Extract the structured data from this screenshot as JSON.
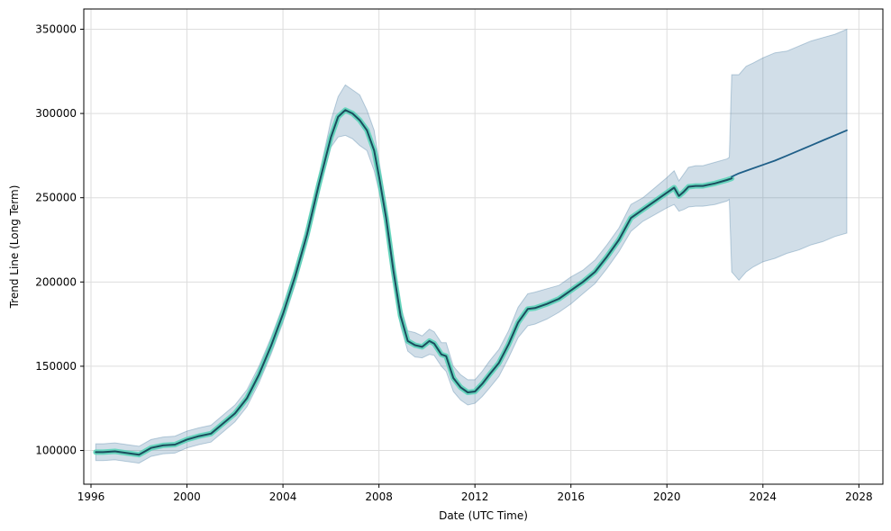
{
  "chart_data": {
    "type": "line",
    "title": "",
    "xlabel": "Date (UTC Time)",
    "ylabel": "Trend Line (Long Term)",
    "xlim": [
      1995.7,
      2029.0
    ],
    "ylim": [
      80000,
      362000
    ],
    "x_ticks": [
      1996,
      2000,
      2004,
      2008,
      2012,
      2016,
      2020,
      2024,
      2028
    ],
    "y_ticks": [
      100000,
      150000,
      200000,
      250000,
      300000,
      350000
    ],
    "grid": true,
    "legend": "none",
    "colors": {
      "band": "#2f6a94",
      "observed_highlight": "#56d4b6",
      "observed_line": "#1b4d5e",
      "forecast_line": "#1f5f88",
      "grid": "#dddddd"
    },
    "series": [
      {
        "role": "observed_highlight",
        "x": [
          1996.2,
          1996.5,
          1997.0,
          1997.5,
          1998.0,
          1998.5,
          1999.0,
          1999.5,
          2000.0,
          2000.5,
          2001.0,
          2001.5,
          2002.0,
          2002.5,
          2003.0,
          2003.5,
          2004.0,
          2004.5,
          2005.0,
          2005.5,
          2006.0,
          2006.3,
          2006.6,
          2006.9,
          2007.2,
          2007.5,
          2007.8,
          2008.0,
          2008.3,
          2008.6,
          2008.9,
          2009.2,
          2009.5,
          2009.8,
          2010.1,
          2010.3,
          2010.6,
          2010.8,
          2011.1,
          2011.4,
          2011.7,
          2012.0,
          2012.3,
          2012.6,
          2013.0,
          2013.4,
          2013.8,
          2014.2,
          2014.5,
          2015.0,
          2015.5,
          2016.0,
          2016.5,
          2017.0,
          2017.5,
          2018.0,
          2018.5,
          2019.0,
          2019.5,
          2020.0,
          2020.3,
          2020.5,
          2020.7,
          2020.9,
          2021.2,
          2021.5,
          2022.0,
          2022.5,
          2022.7
        ],
        "y": [
          99000,
          99000,
          99500,
          98500,
          97500,
          101500,
          103000,
          103500,
          106500,
          108500,
          110000,
          116000,
          122000,
          131000,
          145000,
          162000,
          181000,
          203000,
          228000,
          258000,
          286000,
          298000,
          302000,
          300000,
          296000,
          290000,
          278000,
          263000,
          238000,
          207000,
          180000,
          165000,
          162500,
          161500,
          165000,
          163500,
          157000,
          156000,
          143000,
          137500,
          134500,
          135000,
          139500,
          145000,
          152000,
          163000,
          176000,
          184000,
          184500,
          187000,
          190000,
          195000,
          200000,
          206000,
          215000,
          225000,
          238000,
          243000,
          248000,
          253000,
          256000,
          251000,
          253500,
          256500,
          257000,
          257000,
          258500,
          260500,
          261500
        ]
      },
      {
        "role": "observed",
        "x": [
          1996.2,
          1996.5,
          1997.0,
          1997.5,
          1998.0,
          1998.5,
          1999.0,
          1999.5,
          2000.0,
          2000.5,
          2001.0,
          2001.5,
          2002.0,
          2002.5,
          2003.0,
          2003.5,
          2004.0,
          2004.5,
          2005.0,
          2005.5,
          2006.0,
          2006.3,
          2006.6,
          2006.9,
          2007.2,
          2007.5,
          2007.8,
          2008.0,
          2008.3,
          2008.6,
          2008.9,
          2009.2,
          2009.5,
          2009.8,
          2010.1,
          2010.3,
          2010.6,
          2010.8,
          2011.1,
          2011.4,
          2011.7,
          2012.0,
          2012.3,
          2012.6,
          2013.0,
          2013.4,
          2013.8,
          2014.2,
          2014.5,
          2015.0,
          2015.5,
          2016.0,
          2016.5,
          2017.0,
          2017.5,
          2018.0,
          2018.5,
          2019.0,
          2019.5,
          2020.0,
          2020.3,
          2020.5,
          2020.7,
          2020.9,
          2021.2,
          2021.5,
          2022.0,
          2022.5,
          2022.7
        ],
        "y": [
          99000,
          99000,
          99500,
          98500,
          97500,
          101500,
          103000,
          103500,
          106500,
          108500,
          110000,
          116000,
          122000,
          131000,
          145000,
          162000,
          181000,
          203000,
          228000,
          258000,
          286000,
          298000,
          302000,
          300000,
          296000,
          290000,
          278000,
          263000,
          238000,
          207000,
          180000,
          165000,
          162500,
          161500,
          165000,
          163500,
          157000,
          156000,
          143000,
          137500,
          134500,
          135000,
          139500,
          145000,
          152000,
          163000,
          176000,
          184000,
          184500,
          187000,
          190000,
          195000,
          200000,
          206000,
          215000,
          225000,
          238000,
          243000,
          248000,
          253000,
          256000,
          251000,
          253500,
          256500,
          257000,
          257000,
          258500,
          260500,
          261500
        ]
      },
      {
        "role": "forecast",
        "x": [
          2022.7,
          2023.0,
          2023.5,
          2024.0,
          2024.5,
          2025.0,
          2025.5,
          2026.0,
          2026.5,
          2027.0,
          2027.5
        ],
        "y": [
          262500,
          264500,
          267000,
          269500,
          272000,
          275000,
          278000,
          281000,
          284000,
          287000,
          290000
        ]
      }
    ],
    "band": {
      "x": [
        1996.2,
        1996.5,
        1997.0,
        1997.5,
        1998.0,
        1998.5,
        1999.0,
        1999.5,
        2000.0,
        2000.5,
        2001.0,
        2001.5,
        2002.0,
        2002.5,
        2003.0,
        2003.5,
        2004.0,
        2004.5,
        2005.0,
        2005.5,
        2006.0,
        2006.3,
        2006.6,
        2006.9,
        2007.2,
        2007.5,
        2007.8,
        2008.0,
        2008.3,
        2008.6,
        2008.9,
        2009.2,
        2009.5,
        2009.8,
        2010.1,
        2010.3,
        2010.6,
        2010.8,
        2011.1,
        2011.4,
        2011.7,
        2012.0,
        2012.3,
        2012.6,
        2013.0,
        2013.4,
        2013.8,
        2014.2,
        2014.5,
        2015.0,
        2015.5,
        2016.0,
        2016.5,
        2017.0,
        2017.5,
        2018.0,
        2018.5,
        2019.0,
        2019.5,
        2020.0,
        2020.3,
        2020.5,
        2020.7,
        2020.9,
        2021.2,
        2021.5,
        2022.0,
        2022.5,
        2022.6,
        2022.7,
        2023.0,
        2023.3,
        2023.6,
        2024.0,
        2024.5,
        2025.0,
        2025.5,
        2026.0,
        2026.5,
        2027.0,
        2027.5
      ],
      "lower": [
        94000,
        94000,
        94500,
        93500,
        92500,
        96500,
        98000,
        98500,
        101500,
        103500,
        105000,
        111000,
        117000,
        126000,
        140000,
        157000,
        176000,
        198000,
        223000,
        253000,
        280000,
        286000,
        287000,
        285000,
        281000,
        278000,
        266000,
        254000,
        230000,
        200000,
        174000,
        159000,
        155500,
        155000,
        157000,
        156500,
        150000,
        147000,
        135000,
        130000,
        127000,
        128000,
        132000,
        137000,
        144000,
        155000,
        167000,
        174000,
        175000,
        178000,
        182000,
        187000,
        193000,
        199000,
        208000,
        218000,
        230000,
        236000,
        240000,
        244000,
        246000,
        242000,
        243000,
        244500,
        245000,
        245000,
        246000,
        248000,
        249000,
        206000,
        201000,
        206000,
        209000,
        212000,
        214000,
        217000,
        219000,
        222000,
        224000,
        227000,
        229000
      ],
      "upper": [
        104000,
        104000,
        104500,
        103500,
        102500,
        106500,
        108000,
        108500,
        111500,
        113500,
        115000,
        121000,
        127000,
        136000,
        150000,
        167000,
        186000,
        208000,
        233000,
        263000,
        296000,
        310000,
        317000,
        314000,
        311000,
        302000,
        290000,
        272000,
        246000,
        214000,
        186000,
        171000,
        170000,
        168000,
        172000,
        170500,
        164000,
        164000,
        150000,
        145000,
        142000,
        142000,
        147000,
        153000,
        160000,
        171000,
        185000,
        193000,
        194000,
        196000,
        198000,
        203000,
        207000,
        213000,
        222000,
        232000,
        246000,
        250000,
        256000,
        262000,
        266000,
        260000,
        264000,
        268000,
        269000,
        269000,
        271000,
        273000,
        274000,
        323000,
        323000,
        328000,
        330000,
        333000,
        336000,
        337000,
        340000,
        343000,
        345000,
        347000,
        350000
      ]
    }
  }
}
